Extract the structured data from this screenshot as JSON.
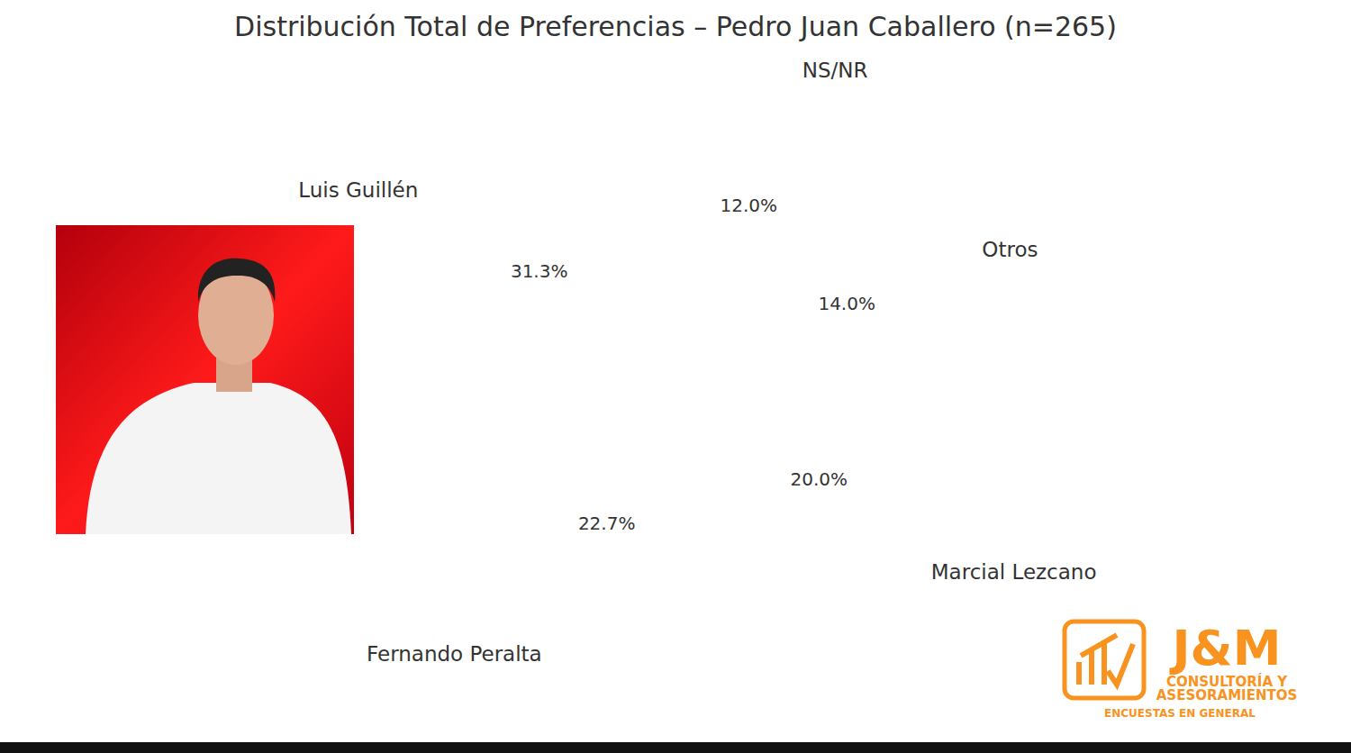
{
  "chart_data": {
    "type": "pie",
    "title": "Distribución Total de Preferencias – Pedro Juan Caballero (n=265)",
    "categories": [
      "NS/NR",
      "Otros",
      "Marcial Lezcano",
      "Fernando Peralta",
      "Luis Guillén"
    ],
    "values": [
      12.0,
      14.0,
      20.0,
      22.7,
      31.3
    ],
    "value_labels": [
      "12.0%",
      "14.0%",
      "20.0%",
      "22.7%",
      "31.3%"
    ],
    "colors": [
      "#f1c40f",
      "#7f8c8d",
      "#2e86c1",
      "#27ae60",
      "#e74c3c"
    ],
    "data_labels": true,
    "annotations": [
      "J&M",
      "CONSULTORÍA Y",
      "ASESORAMIENTOS",
      "ENCUESTAS EN GENERAL"
    ]
  }
}
